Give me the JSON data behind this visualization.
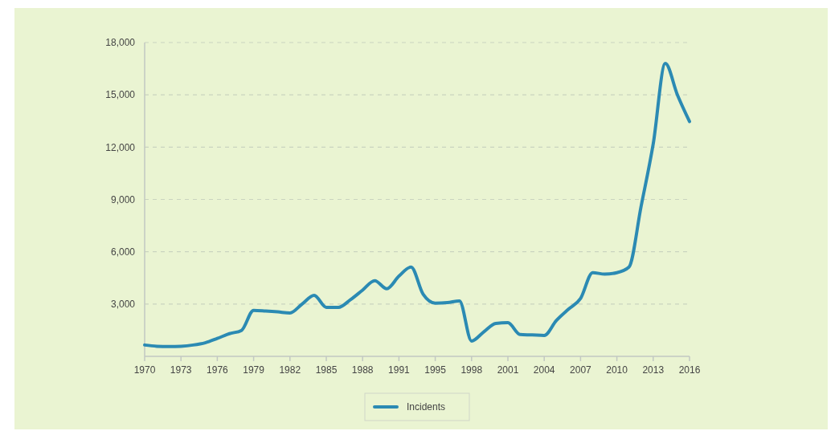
{
  "chart_data": {
    "type": "line",
    "categories": [
      "1970",
      null,
      null,
      "1973",
      null,
      null,
      "1976",
      null,
      null,
      "1979",
      null,
      null,
      "1982",
      null,
      null,
      "1985",
      null,
      null,
      "1988",
      null,
      null,
      "1991",
      null,
      null,
      "1995",
      null,
      null,
      "1998",
      null,
      null,
      "2001",
      null,
      null,
      "2004",
      null,
      null,
      "2007",
      null,
      null,
      "2010",
      null,
      null,
      "2013",
      null,
      null,
      "2016"
    ],
    "series": [
      {
        "name": "Incidents",
        "color": "#2b8ab3",
        "values": [
          650,
          580,
          560,
          580,
          650,
          780,
          1030,
          1300,
          1490,
          2640,
          2600,
          2550,
          2490,
          3000,
          3500,
          2810,
          2810,
          3250,
          3800,
          4340,
          3880,
          4600,
          5120,
          3560,
          3050,
          3080,
          3180,
          880,
          1400,
          1890,
          1930,
          1250,
          1230,
          1200,
          2050,
          2700,
          3320,
          4800,
          4720,
          4800,
          5120,
          8600,
          12180,
          16800,
          15000,
          13470
        ]
      }
    ],
    "ylim": [
      0,
      18000
    ],
    "yticks": [
      {
        "value": 3000,
        "label": "3,000"
      },
      {
        "value": 6000,
        "label": "6,000"
      },
      {
        "value": 9000,
        "label": "9,000"
      },
      {
        "value": 12000,
        "label": "12,000"
      },
      {
        "value": 15000,
        "label": "15,000"
      },
      {
        "value": 18000,
        "label": "18,000"
      }
    ],
    "grid": "y",
    "legend": "bottom",
    "marker": "none",
    "line_style": "solid"
  }
}
